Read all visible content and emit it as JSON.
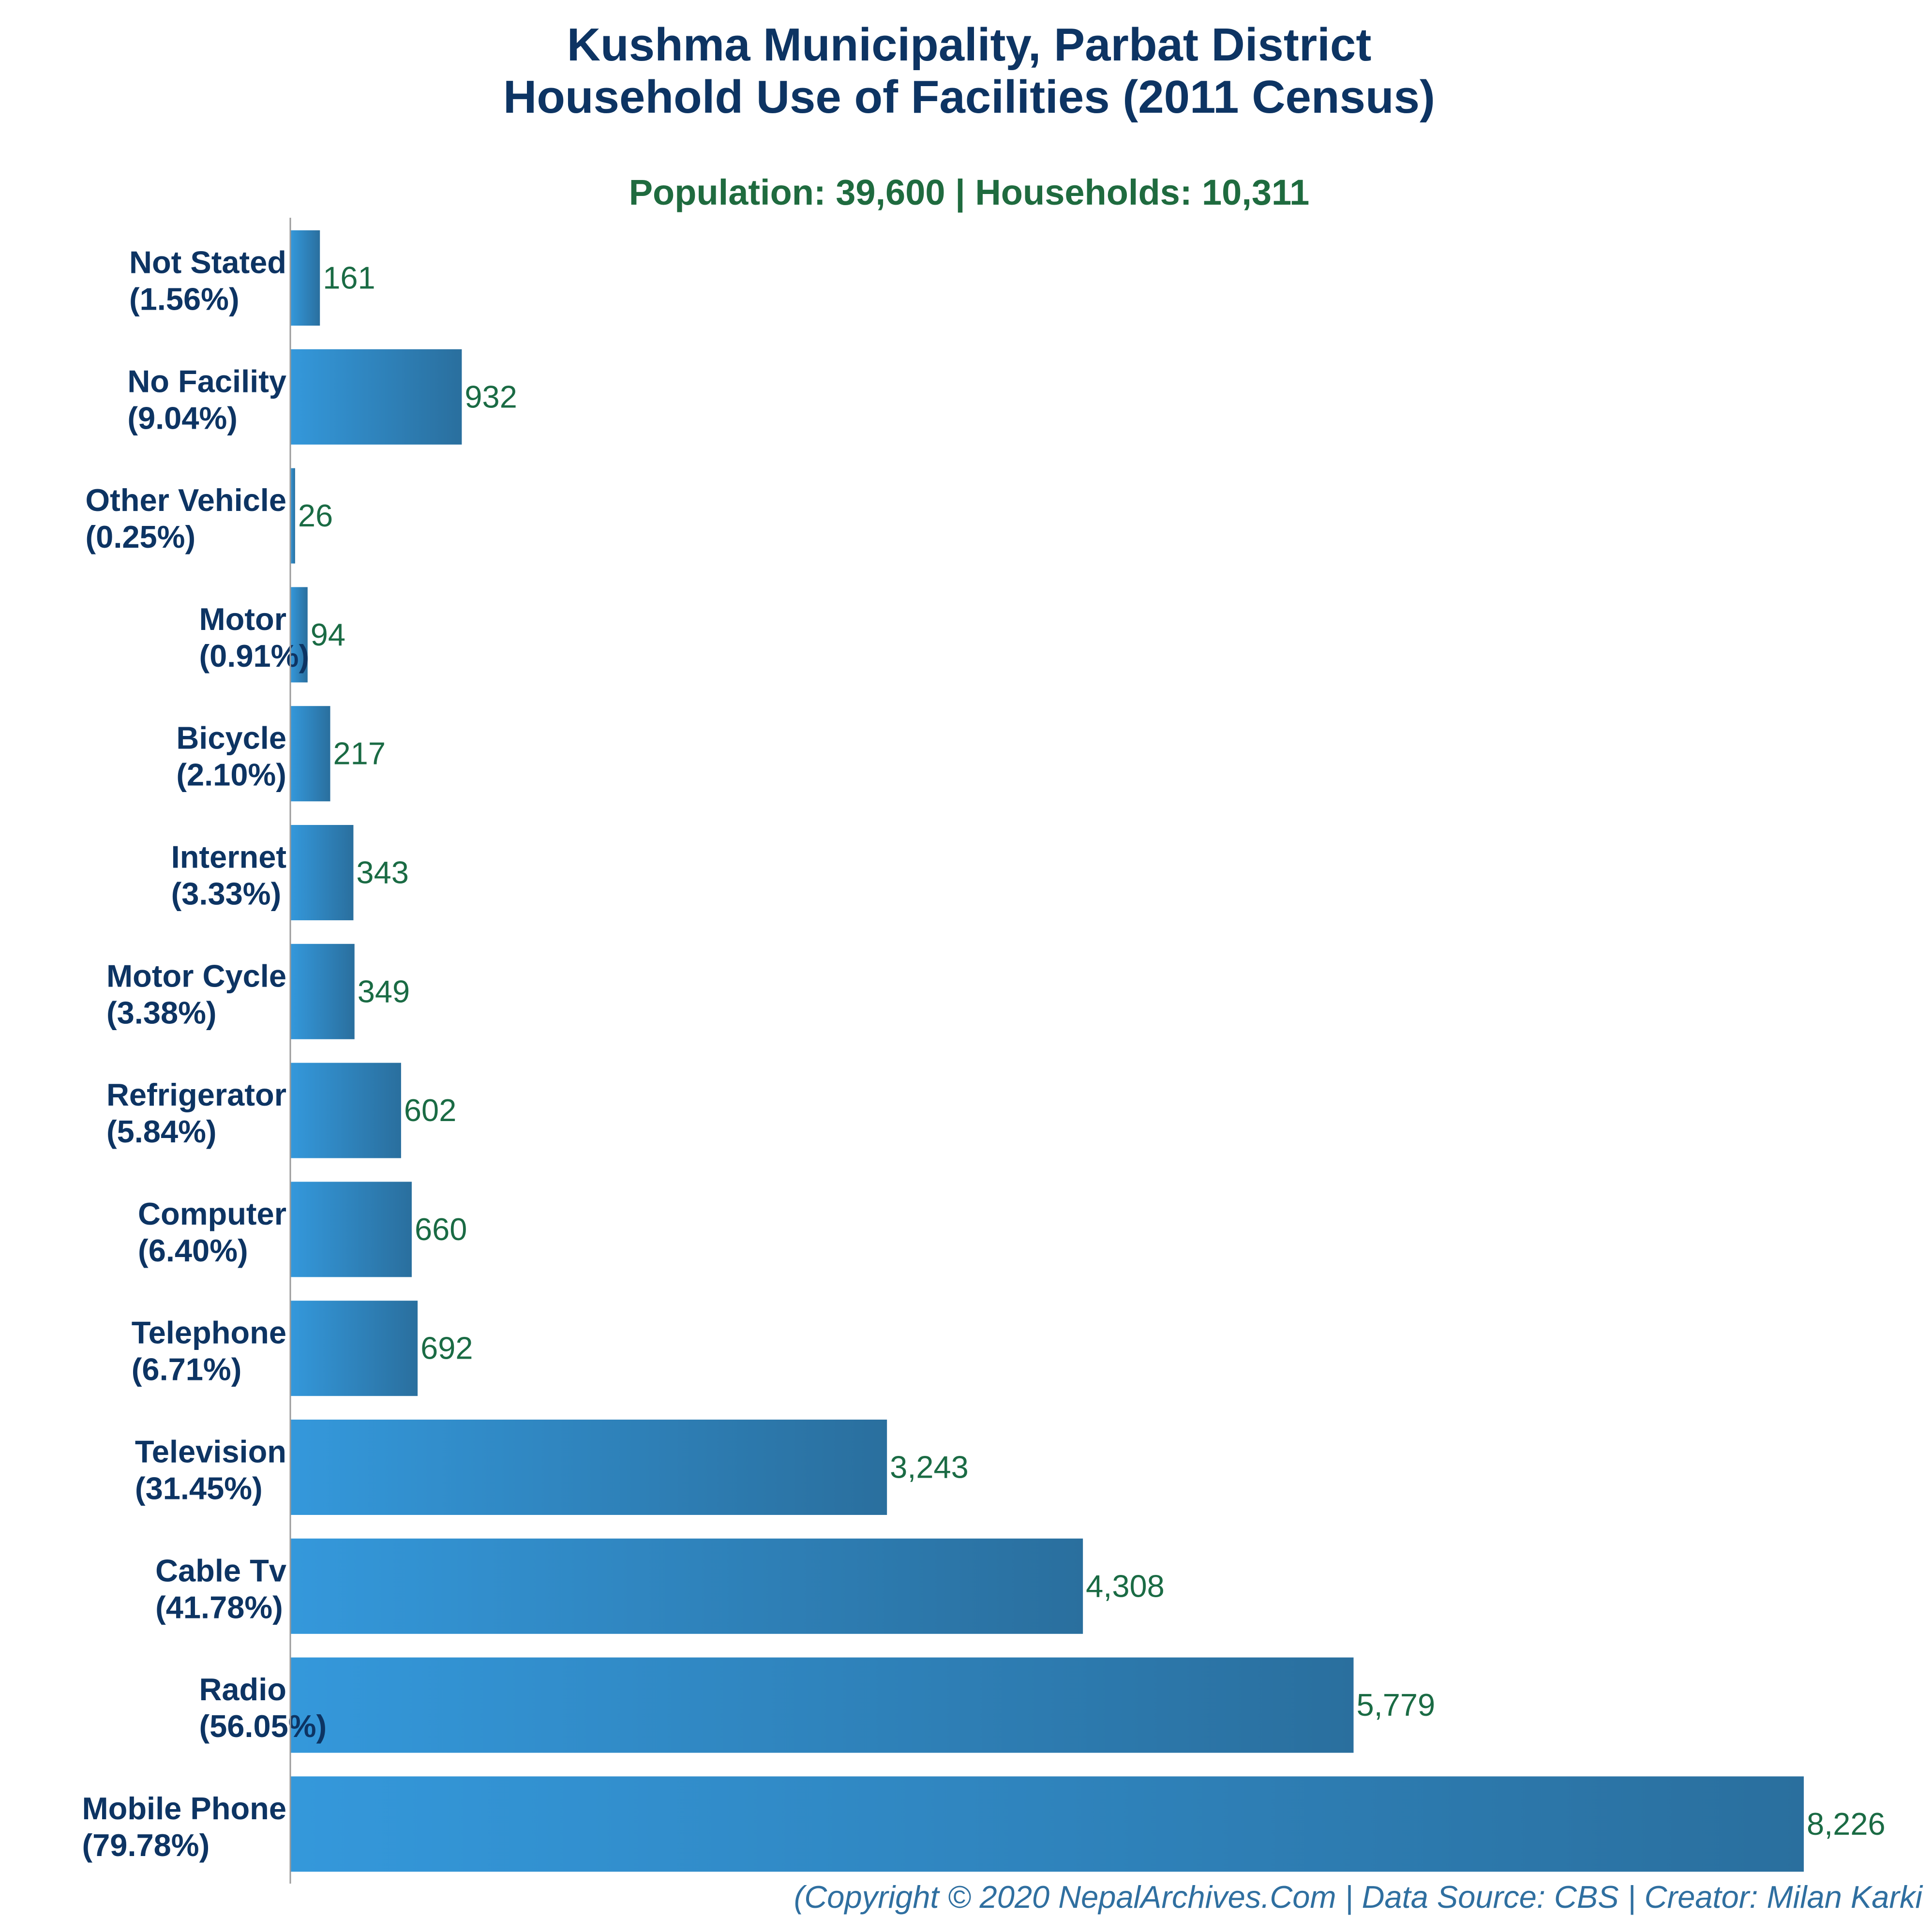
{
  "chart_data": {
    "type": "bar",
    "orientation": "horizontal",
    "title_line1": "Kushma Municipality, Parbat District",
    "title_line2": "Household Use of Facilities (2011 Census)",
    "subtitle": "Population: 39,600 | Households: 10,311",
    "footer": "(Copyright © 2020 NepalArchives.Com | Data Source: CBS | Creator: Milan Karki",
    "categories": [
      "Not Stated",
      "No Facility",
      "Other Vehicle",
      "Motor",
      "Bicycle",
      "Internet",
      "Motor Cycle",
      "Refrigerator",
      "Computer",
      "Telephone",
      "Television",
      "Cable Tv",
      "Radio",
      "Mobile Phone"
    ],
    "percent_labels": [
      "(1.56%)",
      "(9.04%)",
      "(0.25%)",
      "(0.91%)",
      "(2.10%)",
      "(3.33%)",
      "(3.38%)",
      "(5.84%)",
      "(6.40%)",
      "(6.71%)",
      "(31.45%)",
      "(41.78%)",
      "(56.05%)",
      "(79.78%)"
    ],
    "values": [
      161,
      932,
      26,
      94,
      217,
      343,
      349,
      602,
      660,
      692,
      3243,
      4308,
      5779,
      8226
    ],
    "value_labels": [
      "161",
      "932",
      "26",
      "94",
      "217",
      "343",
      "349",
      "602",
      "660",
      "692",
      "3,243",
      "4,308",
      "5,779",
      "8,226"
    ],
    "xlim": [
      0,
      8226
    ],
    "grid": false,
    "bar_color_start": "#3498db",
    "bar_color_end": "#2a6f9e",
    "title_color": "#0d3463",
    "subtitle_color": "#1f6b3f",
    "value_label_color": "#1a6b44"
  }
}
